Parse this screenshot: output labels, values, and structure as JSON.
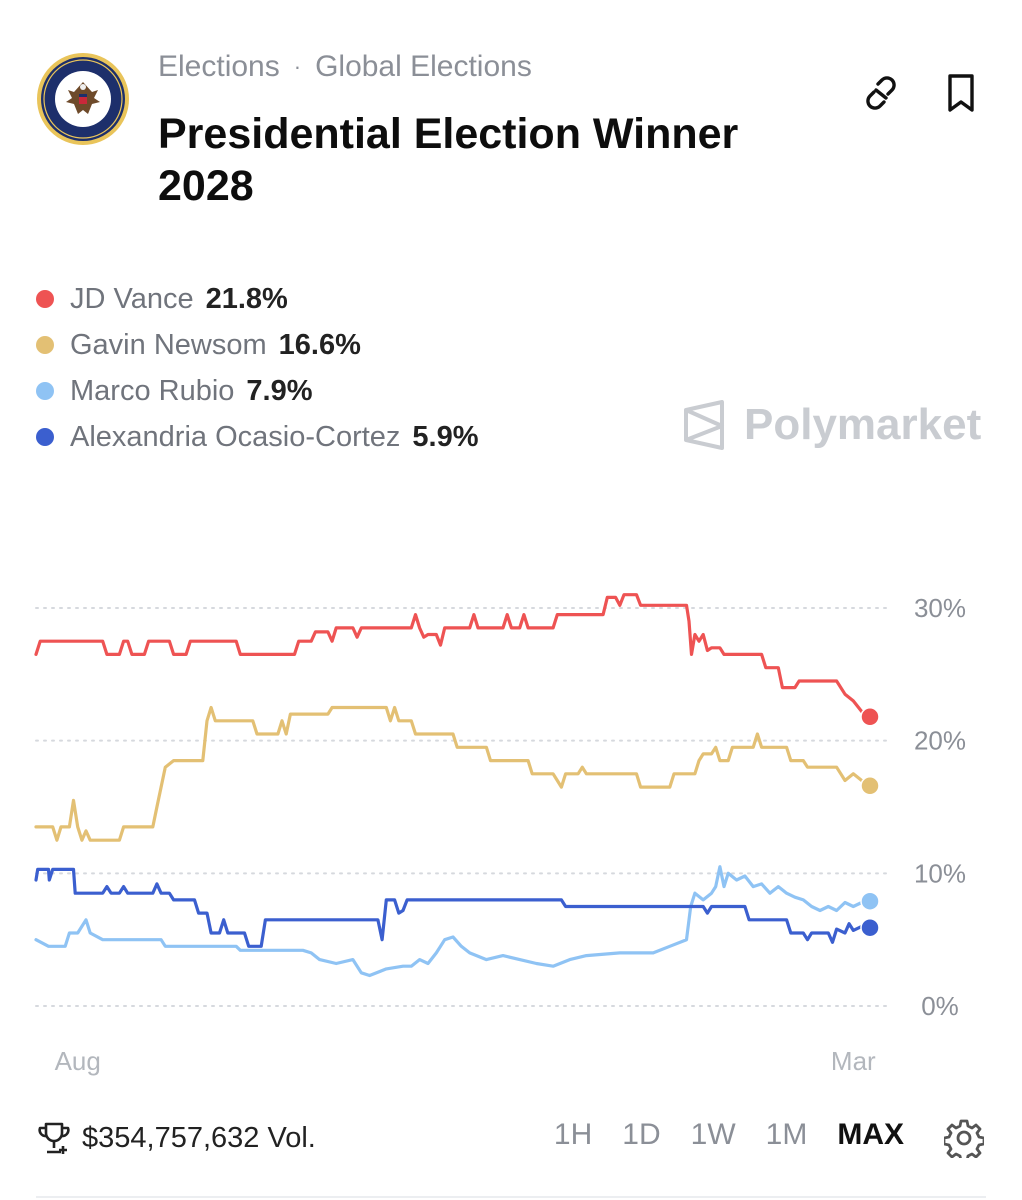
{
  "header": {
    "breadcrumb": [
      "Elections",
      "Global Elections"
    ],
    "separator": "·",
    "title": "Presidential Election Winner 2028",
    "icons": [
      "link-icon",
      "bookmark-icon"
    ]
  },
  "legend": [
    {
      "name": "JD Vance",
      "value": "21.8%",
      "color": "#ee5353"
    },
    {
      "name": "Gavin Newsom",
      "value": "16.6%",
      "color": "#e3c074"
    },
    {
      "name": "Marco Rubio",
      "value": "7.9%",
      "color": "#8fc3f4"
    },
    {
      "name": "Alexandria Ocasio-Cortez",
      "value": "5.9%",
      "color": "#3b5fcf"
    }
  ],
  "watermark": "Polymarket",
  "footer": {
    "volume": "$354,757,632 Vol.",
    "ranges": [
      "1H",
      "1D",
      "1W",
      "1M",
      "MAX"
    ],
    "active_range": "MAX"
  },
  "chart_data": {
    "type": "line",
    "title": "Presidential Election Winner 2028",
    "x_range": [
      0,
      100
    ],
    "x_tick_labels": [
      {
        "x": 5,
        "label": "Aug"
      },
      {
        "x": 98,
        "label": "Mar"
      }
    ],
    "y_ticks": [
      {
        "value": 30,
        "label": "30%"
      },
      {
        "value": 20,
        "label": "20%"
      },
      {
        "value": 10,
        "label": "10%"
      },
      {
        "value": 0,
        "label": "0%"
      }
    ],
    "ylim": [
      0,
      30
    ],
    "grid": true,
    "series": [
      {
        "name": "JD Vance",
        "color": "#ee5353",
        "end_value": 21.8,
        "points": [
          [
            0,
            26.5
          ],
          [
            0.5,
            27.5
          ],
          [
            8,
            27.5
          ],
          [
            8.5,
            26.5
          ],
          [
            10,
            26.5
          ],
          [
            10.5,
            27.5
          ],
          [
            11,
            27.5
          ],
          [
            11.5,
            26.5
          ],
          [
            13,
            26.5
          ],
          [
            13.5,
            27.5
          ],
          [
            16,
            27.5
          ],
          [
            16.5,
            26.5
          ],
          [
            18,
            26.5
          ],
          [
            18.5,
            27.5
          ],
          [
            24,
            27.5
          ],
          [
            24.5,
            26.5
          ],
          [
            31,
            26.5
          ],
          [
            31.5,
            27.5
          ],
          [
            33,
            27.5
          ],
          [
            33.5,
            28.2
          ],
          [
            35,
            28.2
          ],
          [
            35.5,
            27.5
          ],
          [
            36,
            28.5
          ],
          [
            38,
            28.5
          ],
          [
            38.5,
            27.8
          ],
          [
            39,
            28.5
          ],
          [
            45,
            28.5
          ],
          [
            45.5,
            29.5
          ],
          [
            46,
            28.5
          ],
          [
            46.5,
            27.8
          ],
          [
            47,
            28
          ],
          [
            48,
            28
          ],
          [
            48.5,
            27.2
          ],
          [
            49,
            28.5
          ],
          [
            52,
            28.5
          ],
          [
            52.5,
            29.5
          ],
          [
            53,
            28.5
          ],
          [
            56,
            28.5
          ],
          [
            56.5,
            29.5
          ],
          [
            57,
            28.5
          ],
          [
            58,
            28.5
          ],
          [
            58.5,
            29.5
          ],
          [
            59,
            28.5
          ],
          [
            62,
            28.5
          ],
          [
            62.5,
            29.5
          ],
          [
            68,
            29.5
          ],
          [
            68.5,
            30.8
          ],
          [
            69.5,
            30.8
          ],
          [
            70,
            30.2
          ],
          [
            70.5,
            31
          ],
          [
            72,
            31
          ],
          [
            72.5,
            30.2
          ],
          [
            78,
            30.2
          ],
          [
            78.3,
            29
          ],
          [
            78.6,
            26.5
          ],
          [
            79,
            28
          ],
          [
            79.5,
            27.5
          ],
          [
            80,
            28
          ],
          [
            80.5,
            26.8
          ],
          [
            81,
            27
          ],
          [
            82,
            27
          ],
          [
            82.5,
            26.5
          ],
          [
            87,
            26.5
          ],
          [
            87.5,
            25.5
          ],
          [
            89,
            25.5
          ],
          [
            89.5,
            24
          ],
          [
            91,
            24
          ],
          [
            91.5,
            24.5
          ],
          [
            96,
            24.5
          ],
          [
            97,
            23.5
          ],
          [
            98,
            23
          ],
          [
            99,
            22.2
          ],
          [
            100,
            21.8
          ]
        ]
      },
      {
        "name": "Gavin Newsom",
        "color": "#e3c074",
        "end_value": 16.6,
        "points": [
          [
            0,
            13.5
          ],
          [
            2,
            13.5
          ],
          [
            2.5,
            12.5
          ],
          [
            3,
            13.5
          ],
          [
            4,
            13.5
          ],
          [
            4.5,
            15.5
          ],
          [
            5,
            13.5
          ],
          [
            5.5,
            12.5
          ],
          [
            6,
            13.2
          ],
          [
            6.5,
            12.5
          ],
          [
            10,
            12.5
          ],
          [
            10.5,
            13.5
          ],
          [
            12,
            13.5
          ],
          [
            12.5,
            13.5
          ],
          [
            14,
            13.5
          ],
          [
            14.5,
            15
          ],
          [
            15.5,
            18
          ],
          [
            16.5,
            18.5
          ],
          [
            17,
            18.5
          ],
          [
            20,
            18.5
          ],
          [
            20.5,
            21.5
          ],
          [
            21,
            22.5
          ],
          [
            21.5,
            21.5
          ],
          [
            26,
            21.5
          ],
          [
            26.5,
            20.5
          ],
          [
            29,
            20.5
          ],
          [
            29.5,
            21.5
          ],
          [
            30,
            20.5
          ],
          [
            30.5,
            22
          ],
          [
            35,
            22
          ],
          [
            35.5,
            22.5
          ],
          [
            42,
            22.5
          ],
          [
            42.5,
            21.5
          ],
          [
            43,
            22.5
          ],
          [
            43.5,
            21.5
          ],
          [
            45,
            21.5
          ],
          [
            45.5,
            20.5
          ],
          [
            50,
            20.5
          ],
          [
            50.5,
            19.5
          ],
          [
            54,
            19.5
          ],
          [
            54.5,
            18.5
          ],
          [
            59,
            18.5
          ],
          [
            59.5,
            17.5
          ],
          [
            62,
            17.5
          ],
          [
            62.5,
            17
          ],
          [
            63,
            16.5
          ],
          [
            63.5,
            17.5
          ],
          [
            65,
            17.5
          ],
          [
            65.5,
            18
          ],
          [
            66,
            17.5
          ],
          [
            72,
            17.5
          ],
          [
            72.5,
            16.5
          ],
          [
            76,
            16.5
          ],
          [
            76.5,
            17.5
          ],
          [
            79,
            17.5
          ],
          [
            79.5,
            18.5
          ],
          [
            80,
            19
          ],
          [
            81,
            19
          ],
          [
            81.5,
            19.5
          ],
          [
            82,
            18.5
          ],
          [
            83,
            18.5
          ],
          [
            83.5,
            19.5
          ],
          [
            86,
            19.5
          ],
          [
            86.5,
            20.5
          ],
          [
            87,
            19.5
          ],
          [
            90,
            19.5
          ],
          [
            90.5,
            18.5
          ],
          [
            92,
            18.5
          ],
          [
            92.5,
            18
          ],
          [
            96,
            18
          ],
          [
            96.5,
            17.5
          ],
          [
            97,
            17
          ],
          [
            98,
            17.5
          ],
          [
            99,
            17
          ],
          [
            100,
            16.6
          ]
        ]
      },
      {
        "name": "Marco Rubio",
        "color": "#8fc3f4",
        "end_value": 7.9,
        "points": [
          [
            0,
            5
          ],
          [
            1.5,
            4.5
          ],
          [
            3.5,
            4.5
          ],
          [
            4,
            5.5
          ],
          [
            5,
            5.5
          ],
          [
            6,
            6.5
          ],
          [
            6.5,
            5.5
          ],
          [
            8,
            5
          ],
          [
            15,
            5
          ],
          [
            15.5,
            4.5
          ],
          [
            24,
            4.5
          ],
          [
            24.5,
            4.2
          ],
          [
            32,
            4.2
          ],
          [
            33,
            4
          ],
          [
            34,
            3.5
          ],
          [
            36,
            3.2
          ],
          [
            38,
            3.5
          ],
          [
            39,
            2.5
          ],
          [
            40,
            2.3
          ],
          [
            42,
            2.8
          ],
          [
            44,
            3
          ],
          [
            45,
            3
          ],
          [
            46,
            3.5
          ],
          [
            47,
            3.2
          ],
          [
            48,
            4
          ],
          [
            48.5,
            4.5
          ],
          [
            49,
            5
          ],
          [
            50,
            5.2
          ],
          [
            51,
            4.5
          ],
          [
            52,
            4
          ],
          [
            54,
            3.5
          ],
          [
            56,
            3.8
          ],
          [
            58,
            3.5
          ],
          [
            60,
            3.2
          ],
          [
            62,
            3
          ],
          [
            64,
            3.5
          ],
          [
            66,
            3.8
          ],
          [
            70,
            4
          ],
          [
            74,
            4
          ],
          [
            76,
            4.5
          ],
          [
            78,
            5
          ],
          [
            78.5,
            7.5
          ],
          [
            79,
            8.5
          ],
          [
            80,
            8
          ],
          [
            81,
            8.5
          ],
          [
            81.5,
            9
          ],
          [
            82,
            10.5
          ],
          [
            82.5,
            9
          ],
          [
            83,
            10
          ],
          [
            84,
            9.5
          ],
          [
            85,
            9.8
          ],
          [
            86,
            9
          ],
          [
            87,
            9.2
          ],
          [
            88,
            8.5
          ],
          [
            89,
            9
          ],
          [
            90,
            8.5
          ],
          [
            91,
            8.2
          ],
          [
            92,
            8
          ],
          [
            93,
            7.5
          ],
          [
            94,
            7.2
          ],
          [
            95,
            7.5
          ],
          [
            96,
            7.2
          ],
          [
            97,
            7.8
          ],
          [
            98,
            7.5
          ],
          [
            99,
            7.8
          ],
          [
            100,
            7.9
          ]
        ]
      },
      {
        "name": "Alexandria Ocasio-Cortez",
        "color": "#3b5fcf",
        "end_value": 5.9,
        "points": [
          [
            0,
            9.5
          ],
          [
            0.2,
            10.3
          ],
          [
            1.5,
            10.3
          ],
          [
            1.6,
            9.5
          ],
          [
            2,
            10.3
          ],
          [
            4.5,
            10.3
          ],
          [
            4.7,
            8.5
          ],
          [
            8,
            8.5
          ],
          [
            8.5,
            9
          ],
          [
            9,
            8.5
          ],
          [
            10,
            8.5
          ],
          [
            10.5,
            9
          ],
          [
            11,
            8.5
          ],
          [
            14,
            8.5
          ],
          [
            14.5,
            9.2
          ],
          [
            15,
            8.5
          ],
          [
            16,
            8.5
          ],
          [
            16.5,
            8
          ],
          [
            19,
            8
          ],
          [
            19.5,
            7
          ],
          [
            20.5,
            7
          ],
          [
            21,
            5.5
          ],
          [
            22,
            5.5
          ],
          [
            22.5,
            6.5
          ],
          [
            23,
            5.5
          ],
          [
            25,
            5.5
          ],
          [
            25.5,
            4.5
          ],
          [
            27,
            4.5
          ],
          [
            27.5,
            6.5
          ],
          [
            41,
            6.5
          ],
          [
            41.5,
            5
          ],
          [
            42,
            8
          ],
          [
            43,
            8
          ],
          [
            43.5,
            7
          ],
          [
            44,
            7.2
          ],
          [
            44.5,
            8
          ],
          [
            63,
            8
          ],
          [
            63.5,
            7.5
          ],
          [
            80,
            7.5
          ],
          [
            80.5,
            7
          ],
          [
            81,
            7.5
          ],
          [
            85,
            7.5
          ],
          [
            85.5,
            6.5
          ],
          [
            90,
            6.5
          ],
          [
            90.5,
            5.5
          ],
          [
            92,
            5.5
          ],
          [
            92.5,
            5
          ],
          [
            93,
            5.5
          ],
          [
            95,
            5.5
          ],
          [
            95.5,
            4.8
          ],
          [
            96,
            5.8
          ],
          [
            97,
            5.5
          ],
          [
            97.5,
            6.2
          ],
          [
            98,
            5.7
          ],
          [
            99,
            6
          ],
          [
            100,
            5.9
          ]
        ]
      }
    ]
  }
}
